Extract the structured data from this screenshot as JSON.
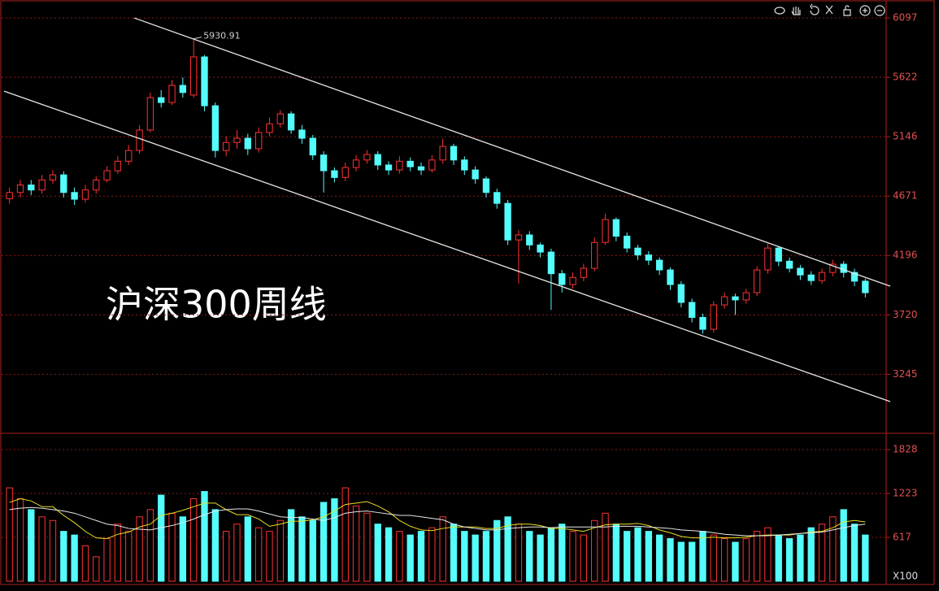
{
  "chart_data": [
    {
      "type": "candlestick",
      "title": "沪深300周线",
      "xlim": [
        -0.5,
        81.3
      ],
      "ylim": [
        2779,
        6208
      ],
      "yticks": [
        3245,
        3720,
        4196,
        4671,
        5146,
        5622,
        6097
      ],
      "grid": true,
      "up_color": "#ff3232",
      "down_color": "#54fcfc",
      "open": [
        4650,
        4700,
        4760,
        4720,
        4800,
        4841,
        4700,
        4646,
        4720,
        4800,
        4874,
        4950,
        5036,
        5200,
        5459,
        5420,
        5557,
        5480,
        5785,
        5394,
        5036,
        5100,
        5134,
        5050,
        5180,
        5250,
        5329,
        5200,
        5134,
        5000,
        4874,
        4820,
        4900,
        4960,
        5004,
        4920,
        4880,
        4950,
        4906,
        4880,
        4960,
        5069,
        4960,
        4880,
        4809,
        4700,
        4613,
        4320,
        4360,
        4280,
        4223,
        4050,
        3963,
        4020,
        4093,
        4300,
        4483,
        4350,
        4255,
        4200,
        4158,
        4080,
        3963,
        3820,
        3700,
        3605,
        3800,
        3865,
        3840,
        3898,
        4080,
        4255,
        4150,
        4093,
        4040,
        3995,
        4060,
        4126,
        4060,
        3990
      ],
      "high": [
        4740,
        4800,
        4800,
        4840,
        4880,
        4870,
        4740,
        4760,
        4830,
        4910,
        4990,
        5080,
        5240,
        5500,
        5520,
        5600,
        5620,
        5930.91,
        5800,
        5420,
        5150,
        5200,
        5170,
        5220,
        5300,
        5360,
        5350,
        5240,
        5160,
        5030,
        4900,
        4940,
        5000,
        5040,
        5030,
        4950,
        4990,
        4980,
        4940,
        5000,
        5130,
        5090,
        4990,
        4910,
        4830,
        4730,
        4640,
        4400,
        4390,
        4300,
        4250,
        4080,
        4060,
        4130,
        4340,
        4530,
        4500,
        4380,
        4280,
        4230,
        4180,
        4100,
        3990,
        3850,
        3730,
        3830,
        3900,
        3890,
        3930,
        4110,
        4290,
        4270,
        4180,
        4120,
        4070,
        4090,
        4160,
        4150,
        4090,
        4010
      ],
      "low": [
        4610,
        4660,
        4680,
        4690,
        4770,
        4660,
        4600,
        4620,
        4690,
        4780,
        4850,
        4920,
        5010,
        5180,
        5380,
        5400,
        5460,
        5460,
        5350,
        4980,
        4990,
        5050,
        5000,
        5020,
        5150,
        5220,
        5170,
        5090,
        4960,
        4700,
        4780,
        4790,
        4870,
        4930,
        4880,
        4840,
        4850,
        4870,
        4840,
        4860,
        4930,
        4920,
        4840,
        4770,
        4660,
        4570,
        4280,
        3970,
        4240,
        4180,
        3760,
        3900,
        3930,
        3990,
        4070,
        4280,
        4310,
        4220,
        4160,
        4120,
        4040,
        3920,
        3780,
        3660,
        3570,
        3580,
        3770,
        3720,
        3810,
        3870,
        4050,
        4110,
        4060,
        4000,
        3960,
        3970,
        4030,
        4020,
        3950,
        3860
      ],
      "close": [
        4700,
        4760,
        4720,
        4800,
        4841,
        4700,
        4646,
        4720,
        4800,
        4874,
        4950,
        5036,
        5200,
        5459,
        5420,
        5557,
        5500,
        5785,
        5394,
        5036,
        5100,
        5134,
        5050,
        5180,
        5250,
        5329,
        5200,
        5134,
        5000,
        4874,
        4820,
        4900,
        4960,
        5004,
        4920,
        4880,
        4950,
        4906,
        4880,
        4960,
        5069,
        4960,
        4880,
        4809,
        4700,
        4613,
        4320,
        4360,
        4280,
        4223,
        4050,
        3963,
        4020,
        4093,
        4300,
        4483,
        4350,
        4255,
        4200,
        4158,
        4080,
        3963,
        3820,
        3700,
        3605,
        3800,
        3865,
        3840,
        3898,
        4080,
        4255,
        4150,
        4093,
        4040,
        3995,
        4060,
        4126,
        4060,
        3990,
        3898
      ],
      "trend_lines": [
        {
          "x": [
            11.5,
            81.3
          ],
          "y": [
            6097,
            3950
          ]
        },
        {
          "x": [
            -0.5,
            81.3
          ],
          "y": [
            5511,
            3026
          ]
        }
      ],
      "trend_color": "#e8e8e8"
    },
    {
      "type": "volume",
      "xlim": [
        -0.5,
        81.3
      ],
      "ylim": [
        12,
        2030
      ],
      "yticks": [
        617,
        1223,
        1828
      ],
      "unit_label": "X100",
      "grid": true,
      "values": [
        1300,
        1150,
        1000,
        900,
        850,
        700,
        650,
        500,
        350,
        600,
        800,
        700,
        900,
        1000,
        1200,
        950,
        900,
        1150,
        1250,
        1000,
        700,
        800,
        900,
        750,
        700,
        850,
        1000,
        900,
        850,
        1100,
        1150,
        1300,
        1050,
        950,
        800,
        750,
        700,
        650,
        700,
        750,
        900,
        800,
        700,
        650,
        700,
        850,
        900,
        800,
        700,
        650,
        750,
        800,
        700,
        650,
        850,
        950,
        800,
        700,
        750,
        700,
        650,
        600,
        550,
        550,
        700,
        650,
        600,
        550,
        600,
        700,
        750,
        650,
        600,
        650,
        750,
        800,
        900,
        1000,
        800,
        650
      ],
      "series": [
        {
          "color": "#e8e020",
          "values": [
            1100,
            1150,
            1120,
            1040,
            1040,
            920,
            820,
            700,
            610,
            600,
            660,
            690,
            760,
            800,
            920,
            950,
            990,
            1040,
            1090,
            1090,
            1000,
            930,
            930,
            870,
            770,
            800,
            840,
            840,
            860,
            900,
            980,
            1070,
            1090,
            1110,
            1050,
            970,
            850,
            770,
            720,
            710,
            740,
            760,
            760,
            760,
            740,
            740,
            780,
            800,
            800,
            780,
            740,
            740,
            720,
            700,
            750,
            790,
            800,
            800,
            810,
            780,
            720,
            680,
            630,
            610,
            610,
            620,
            610,
            610,
            620,
            640,
            650,
            650,
            650,
            670,
            690,
            700,
            750,
            830,
            850,
            830
          ]
        },
        {
          "color": "#e8e8e8",
          "values": [
            1000,
            1020,
            1030,
            1020,
            1000,
            980,
            950,
            900,
            850,
            800,
            780,
            740,
            730,
            720,
            750,
            780,
            820,
            870,
            930,
            980,
            1000,
            1010,
            1010,
            980,
            940,
            900,
            890,
            890,
            870,
            850,
            890,
            950,
            970,
            980,
            960,
            940,
            920,
            920,
            900,
            880,
            860,
            800,
            760,
            740,
            720,
            720,
            740,
            750,
            760,
            760,
            750,
            760,
            760,
            760,
            760,
            760,
            770,
            770,
            770,
            760,
            750,
            740,
            720,
            710,
            700,
            680,
            660,
            650,
            640,
            640,
            640,
            650,
            660,
            670,
            680,
            690,
            720,
            750,
            780,
            800
          ]
        }
      ]
    }
  ]
}
